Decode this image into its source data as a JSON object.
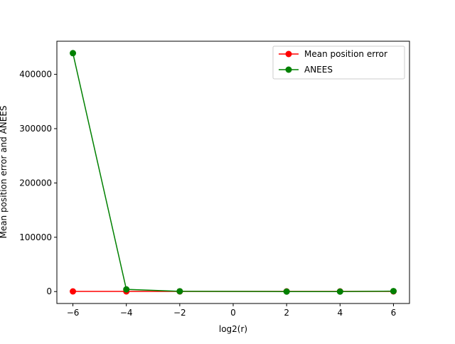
{
  "chart_data": {
    "type": "line",
    "title": "",
    "xlabel": "log2(r)",
    "ylabel": "Mean position error and ANEES",
    "xlim": [
      -6.6,
      6.6
    ],
    "ylim": [
      -21950,
      461000
    ],
    "xticks": [
      -6,
      -4,
      -2,
      0,
      2,
      4,
      6
    ],
    "xtick_labels": [
      "−6",
      "−4",
      "−2",
      "0",
      "2",
      "4",
      "6"
    ],
    "yticks": [
      0,
      100000,
      200000,
      300000,
      400000
    ],
    "ytick_labels": [
      "0",
      "100000",
      "200000",
      "300000",
      "400000"
    ],
    "grid": false,
    "legend": "top-right",
    "series": [
      {
        "name": "Mean position error",
        "color": "#ff0000",
        "marker": "circle",
        "x": [
          -6,
          -4,
          -2,
          2,
          4,
          6
        ],
        "y": [
          300,
          300,
          300,
          300,
          300,
          300
        ]
      },
      {
        "name": "ANEES",
        "color": "#008000",
        "marker": "circle",
        "x": [
          -6,
          -4,
          -2,
          2,
          4,
          6
        ],
        "y": [
          439000,
          4000,
          500,
          0,
          0,
          800
        ]
      }
    ]
  }
}
